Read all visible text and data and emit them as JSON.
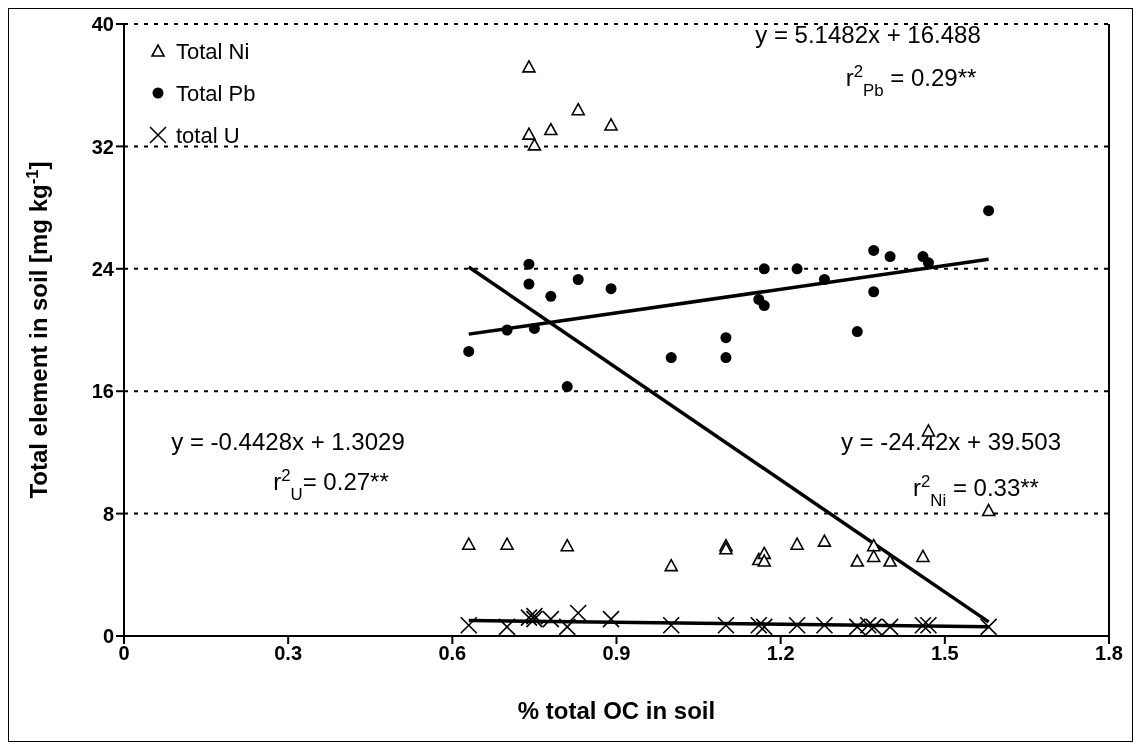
{
  "chart_data": {
    "type": "scatter",
    "xlabel": "% total OC in soil",
    "ylabel": "Total element in soil [mg kg$^{-1}$]",
    "xlim": [
      0,
      1.8
    ],
    "xticks": [
      0,
      0.3,
      0.6,
      0.9,
      1.2,
      1.5,
      1.8
    ],
    "ylim": [
      0,
      40
    ],
    "yticks": [
      0,
      8,
      16,
      24,
      32,
      40
    ],
    "grid": "y",
    "legend": "top left",
    "annotations": [
      "y = 5.1482x + 16.488",
      "r$^{2}$$_{Pb}$ = 0.29**",
      "y = -0.4428x + 1.3029",
      "r$^{2}$$_{U}$= 0.27**",
      "y = -24.42x + 39.503",
      "r$^{2}$$_{Ni}$ = 0.33**"
    ],
    "series": [
      {
        "name": "Total Ni",
        "marker": "triangle",
        "color": "#000000",
        "x": [
          0.63,
          0.7,
          0.74,
          0.74,
          0.75,
          0.78,
          0.81,
          0.83,
          0.89,
          1.0,
          1.1,
          1.1,
          1.16,
          1.17,
          1.17,
          1.23,
          1.28,
          1.34,
          1.37,
          1.37,
          1.4,
          1.46,
          1.47,
          1.58
        ],
        "values": [
          6.0,
          6.0,
          37.2,
          32.8,
          32.1,
          33.1,
          5.9,
          34.4,
          33.4,
          4.6,
          5.9,
          5.7,
          5.0,
          5.4,
          4.9,
          6.0,
          6.2,
          4.9,
          5.9,
          5.2,
          4.9,
          5.2,
          13.4,
          8.2
        ]
      },
      {
        "name": "Total Pb",
        "marker": "circle",
        "color": "#000000",
        "x": [
          0.63,
          0.7,
          0.74,
          0.74,
          0.75,
          0.78,
          0.81,
          0.83,
          0.89,
          1.0,
          1.1,
          1.1,
          1.16,
          1.17,
          1.17,
          1.23,
          1.28,
          1.34,
          1.37,
          1.37,
          1.4,
          1.46,
          1.47,
          1.58
        ],
        "values": [
          18.6,
          20.0,
          24.3,
          23.0,
          20.1,
          22.2,
          16.3,
          23.3,
          22.7,
          18.2,
          19.5,
          18.2,
          22.0,
          21.6,
          24.0,
          24.0,
          23.3,
          19.9,
          25.2,
          22.5,
          24.8,
          24.8,
          24.4,
          27.8
        ]
      },
      {
        "name": "total U",
        "marker": "cross",
        "color": "#000000",
        "x": [
          0.63,
          0.7,
          0.74,
          0.75,
          0.75,
          0.78,
          0.81,
          0.83,
          0.89,
          1.0,
          1.1,
          1.16,
          1.17,
          1.23,
          1.28,
          1.34,
          1.36,
          1.37,
          1.4,
          1.46,
          1.47,
          1.58
        ],
        "values": [
          0.7,
          0.6,
          1.2,
          1.3,
          1.1,
          1.1,
          0.6,
          1.5,
          1.1,
          0.7,
          0.7,
          0.7,
          0.6,
          0.7,
          0.7,
          0.6,
          0.7,
          0.6,
          0.6,
          0.7,
          0.7,
          0.6
        ]
      },
      {
        "type": "line",
        "marker": "none",
        "color": "#000000",
        "x": [
          0.63,
          1.58
        ],
        "values": [
          19.73,
          24.62
        ]
      },
      {
        "type": "line",
        "marker": "none",
        "color": "#000000",
        "x": [
          0.63,
          1.58
        ],
        "values": [
          24.12,
          0.92
        ]
      },
      {
        "type": "line",
        "marker": "none",
        "color": "#000000",
        "x": [
          0.63,
          1.58
        ],
        "values": [
          1.02,
          0.6
        ]
      }
    ]
  }
}
